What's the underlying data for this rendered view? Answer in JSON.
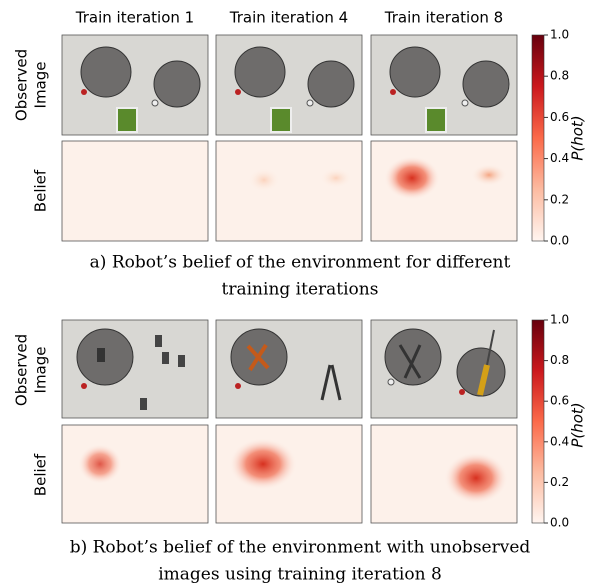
{
  "panels": [
    {
      "columns": [
        "Train iteration 1",
        "Train iteration 4",
        "Train iteration 8"
      ],
      "observed_label": [
        "Observed",
        "Image"
      ],
      "belief_label": "Belief",
      "caption": [
        "a) Robot’s belief of the environment for different",
        "training iterations"
      ],
      "colorbar": {
        "label": "P(hot)",
        "lim": [
          0,
          1
        ],
        "ticks": [
          {
            "value": 0,
            "label": "0.0"
          },
          0.2,
          0.4,
          0.6,
          0.8,
          {
            "value": 1,
            "label": "1.0"
          }
        ]
      }
    },
    {
      "observed_label": [
        "Observed",
        "Image"
      ],
      "belief_label": "Belief",
      "caption": [
        "b) Robot’s belief of the environment with unobserved",
        "images using training iteration 8"
      ],
      "colorbar": {
        "label": "P(hot)",
        "lim": [
          0,
          1
        ],
        "ticks": [
          {
            "value": 0,
            "label": "0.0"
          },
          0.2,
          0.4,
          0.6,
          0.8,
          {
            "value": 1,
            "label": "1.0"
          }
        ]
      }
    }
  ]
}
